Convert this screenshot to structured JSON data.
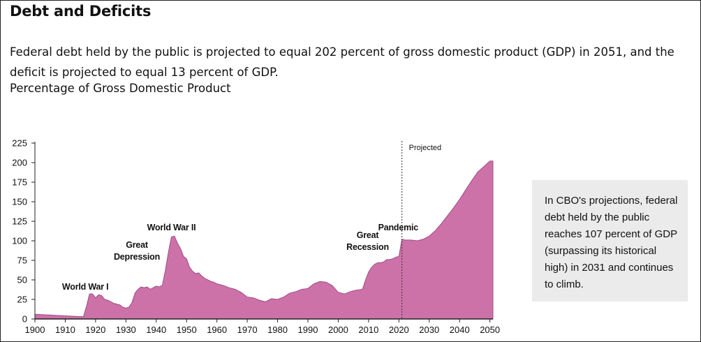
{
  "page": {
    "title": "Debt and Deficits",
    "description": "Federal debt held by the public is projected to equal 202 percent of gross domestic product (GDP) in 2051, and the deficit is projected to equal 13 percent of GDP.",
    "unit_label": "Percentage of Gross Domestic Product",
    "callout": "In CBO's projections, federal debt held by the public reaches 107 percent of GDP (surpassing its historical high) in 2031 and continues to climb."
  },
  "colors": {
    "area_fill": "#cc72a9",
    "area_stroke": "#a14b82",
    "axis": "#222222",
    "callout_bg": "#ebebeb"
  },
  "chart_data": {
    "type": "area",
    "title": "",
    "xlabel": "",
    "ylabel": "",
    "xlim": [
      1900,
      2051
    ],
    "ylim": [
      0,
      225
    ],
    "x_ticks": [
      1900,
      1910,
      1920,
      1930,
      1940,
      1950,
      1960,
      1970,
      1980,
      1990,
      2000,
      2010,
      2020,
      2030,
      2040,
      2050
    ],
    "y_ticks": [
      0,
      25,
      50,
      75,
      100,
      125,
      150,
      175,
      200,
      225
    ],
    "grid": false,
    "projection_start": 2021,
    "projection_label": "Projected",
    "series": [
      {
        "x": [
          1900,
          1905,
          1910,
          1915,
          1916,
          1917,
          1918,
          1919,
          1920,
          1921,
          1922,
          1923,
          1924,
          1925,
          1926,
          1927,
          1928,
          1929,
          1930,
          1931,
          1932,
          1933,
          1934,
          1935,
          1936,
          1937,
          1938,
          1939,
          1940,
          1941,
          1942,
          1943,
          1944,
          1945,
          1946,
          1947,
          1948,
          1949,
          1950,
          1951,
          1952,
          1953,
          1954,
          1955,
          1956,
          1957,
          1958,
          1959,
          1960,
          1962,
          1964,
          1966,
          1968,
          1970,
          1972,
          1974,
          1976,
          1978,
          1980,
          1982,
          1984,
          1986,
          1988,
          1990,
          1992,
          1994,
          1996,
          1998,
          2000,
          2002,
          2004,
          2006,
          2008,
          2009,
          2010,
          2011,
          2012,
          2013,
          2014,
          2015,
          2016,
          2017,
          2018,
          2019,
          2020,
          2021,
          2022,
          2024,
          2026,
          2028,
          2030,
          2032,
          2034,
          2036,
          2038,
          2040,
          2042,
          2044,
          2046,
          2048,
          2050,
          2051
        ],
        "values": [
          6,
          5,
          4,
          3,
          3,
          16,
          32,
          32,
          27,
          31,
          30,
          25,
          24,
          22,
          20,
          19,
          18,
          15,
          14,
          15,
          21,
          33,
          38,
          41,
          40,
          41,
          38,
          40,
          42,
          41,
          43,
          62,
          85,
          105,
          106,
          97,
          90,
          80,
          77,
          66,
          61,
          58,
          59,
          55,
          52,
          50,
          48,
          47,
          45,
          43,
          40,
          38,
          34,
          28,
          27,
          24,
          22,
          26,
          25,
          28,
          33,
          35,
          38,
          39,
          45,
          48,
          47,
          43,
          34,
          32,
          35,
          37,
          38,
          50,
          60,
          66,
          70,
          72,
          72,
          73,
          76,
          76,
          77,
          79,
          80,
          102,
          101,
          101,
          100,
          102,
          106,
          113,
          122,
          132,
          142,
          153,
          165,
          177,
          188,
          195,
          202,
          202
        ]
      }
    ],
    "annotations": [
      {
        "text": "World War I",
        "x": 1918
      },
      {
        "text": "Great\nDepression",
        "x": 1932
      },
      {
        "text": "World War II",
        "x": 1945
      },
      {
        "text": "Great\nRecession",
        "x": 2009
      },
      {
        "text": "Pandemic",
        "x": 2020
      }
    ]
  }
}
